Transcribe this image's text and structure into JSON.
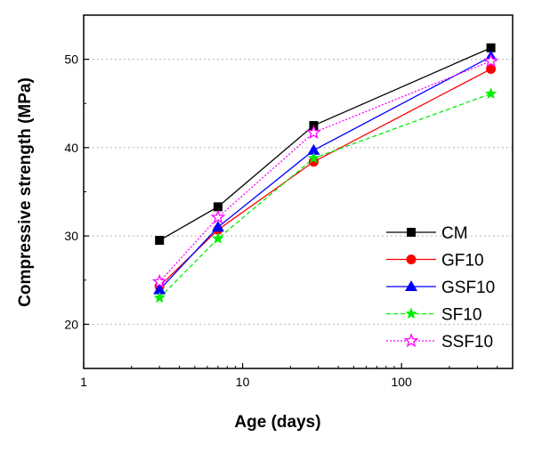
{
  "chart_data": {
    "type": "line",
    "title": "",
    "xlabel": "Age (days)",
    "ylabel": "Compressive strength (MPa)",
    "x_scale": "log",
    "xlim": [
      1,
      500
    ],
    "ylim": [
      15,
      55
    ],
    "x_ticks": [
      1,
      10,
      100
    ],
    "x_tick_labels": [
      "1",
      "10",
      "100"
    ],
    "y_ticks": [
      20,
      30,
      40,
      50
    ],
    "y_tick_labels": [
      "20",
      "30",
      "40",
      "50"
    ],
    "grid": "horizontal dotted",
    "legend_position": "bottom-right",
    "x": [
      3,
      7,
      28,
      365
    ],
    "series": [
      {
        "name": "CM",
        "values": [
          29.5,
          33.3,
          42.5,
          51.3
        ],
        "color": "#000000",
        "marker": "square",
        "dash": "solid"
      },
      {
        "name": "GF10",
        "values": [
          24.3,
          30.7,
          38.4,
          48.9
        ],
        "color": "#ff0000",
        "marker": "circle",
        "dash": "solid"
      },
      {
        "name": "GSF10",
        "values": [
          23.9,
          31.0,
          39.7,
          50.3
        ],
        "color": "#0000ff",
        "marker": "triangle",
        "dash": "solid"
      },
      {
        "name": "SF10",
        "values": [
          23.0,
          29.7,
          38.8,
          46.1
        ],
        "color": "#00ee00",
        "marker": "star",
        "dash": "dashed"
      },
      {
        "name": "SSF10",
        "values": [
          24.8,
          32.1,
          41.7,
          49.8
        ],
        "color": "#ff00ff",
        "marker": "star-open",
        "dash": "dotted"
      }
    ]
  }
}
